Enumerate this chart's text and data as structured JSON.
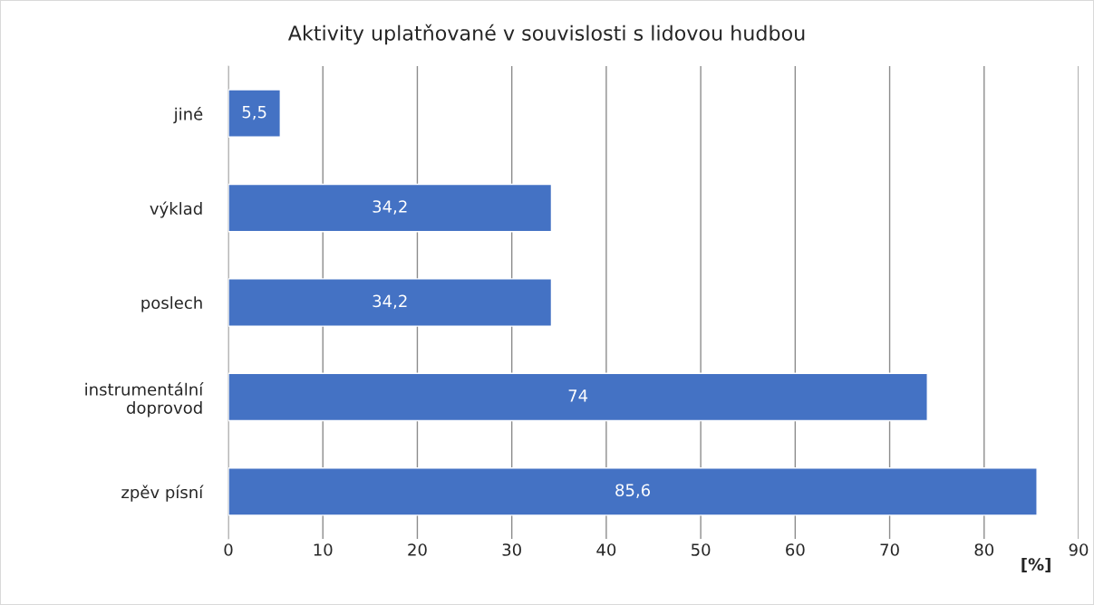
{
  "chart_data": {
    "type": "bar",
    "orientation": "horizontal",
    "title": "Aktivity uplatňované v souvislosti s lidovou hudbou",
    "categories": [
      "jiné",
      "výklad",
      "poslech",
      "instrumentální\ndoprovod",
      "zpěv písní"
    ],
    "values": [
      5.5,
      34.2,
      34.2,
      74,
      85.6
    ],
    "value_labels": [
      "5,5",
      "34,2",
      "34,2",
      "74",
      "85,6"
    ],
    "color": "#4472c4",
    "xlabel": "[%]",
    "xlim": [
      0,
      90
    ],
    "xticks": [
      0,
      10,
      20,
      30,
      40,
      50,
      60,
      70,
      80,
      90
    ],
    "grid": "x",
    "legend": false
  }
}
